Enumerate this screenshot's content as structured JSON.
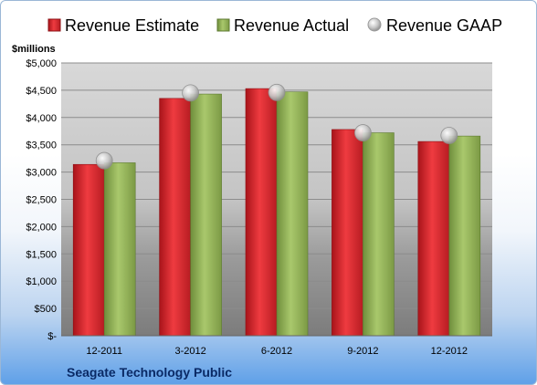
{
  "chart_data": {
    "type": "bar",
    "title": "",
    "company": "Seagate Technology Public",
    "unit_label": "$millions",
    "categories": [
      "12-2011",
      "3-2012",
      "6-2012",
      "9-2012",
      "12-2012"
    ],
    "series": [
      {
        "name": "Revenue Estimate",
        "kind": "bar",
        "color": "#d9262c",
        "values": [
          3140,
          4350,
          4530,
          3780,
          3560
        ]
      },
      {
        "name": "Revenue Actual",
        "kind": "bar",
        "color": "#93b35a",
        "values": [
          3170,
          4430,
          4470,
          3720,
          3660
        ]
      },
      {
        "name": "Revenue GAAP",
        "kind": "marker",
        "color": "#c8c8c8",
        "values": [
          3210,
          4450,
          4460,
          3720,
          3670
        ]
      }
    ],
    "y_ticks": [
      "$-",
      "$500",
      "$1,000",
      "$1,500",
      "$2,000",
      "$2,500",
      "$3,000",
      "$3,500",
      "$4,000",
      "$4,500",
      "$5,000"
    ],
    "ylim": [
      0,
      5000
    ],
    "y_step": 500,
    "grid": true,
    "legend_position": "top"
  }
}
